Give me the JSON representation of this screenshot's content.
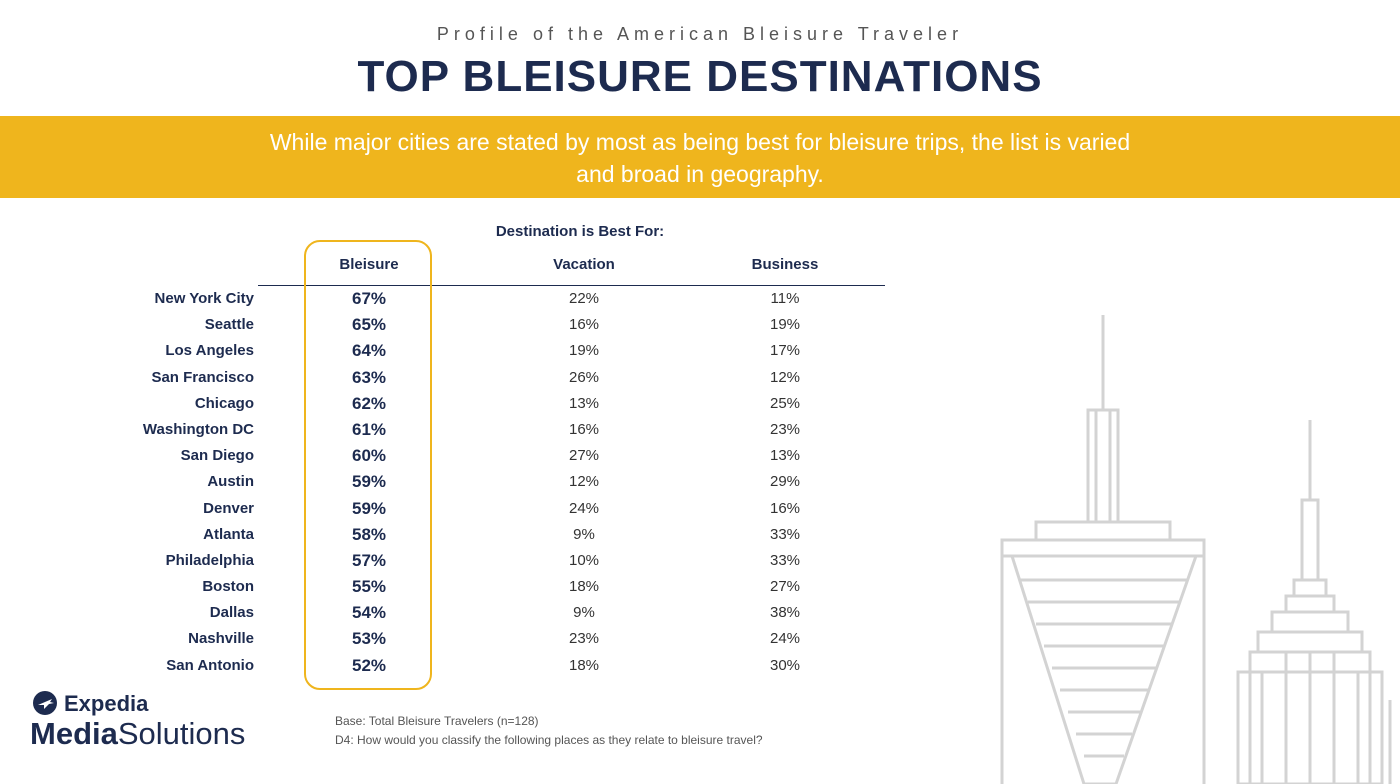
{
  "header": {
    "subtitle": "Profile of the American Bleisure Traveler",
    "title": "TOP BLEISURE DESTINATIONS"
  },
  "banner": {
    "text": "While major cities are stated by most as being best for bleisure trips, the list is varied and broad in geography."
  },
  "table": {
    "group_label": "Destination is Best For:",
    "columns": [
      "Bleisure",
      "Vacation",
      "Business"
    ],
    "rows": [
      {
        "city": "New York City",
        "bleisure": "67%",
        "vacation": "22%",
        "business": "11%"
      },
      {
        "city": "Seattle",
        "bleisure": "65%",
        "vacation": "16%",
        "business": "19%"
      },
      {
        "city": "Los Angeles",
        "bleisure": "64%",
        "vacation": "19%",
        "business": "17%"
      },
      {
        "city": "San Francisco",
        "bleisure": "63%",
        "vacation": "26%",
        "business": "12%"
      },
      {
        "city": "Chicago",
        "bleisure": "62%",
        "vacation": "13%",
        "business": "25%"
      },
      {
        "city": "Washington DC",
        "bleisure": "61%",
        "vacation": "16%",
        "business": "23%"
      },
      {
        "city": "San Diego",
        "bleisure": "60%",
        "vacation": "27%",
        "business": "13%"
      },
      {
        "city": "Austin",
        "bleisure": "59%",
        "vacation": "12%",
        "business": "29%"
      },
      {
        "city": "Denver",
        "bleisure": "59%",
        "vacation": "24%",
        "business": "16%"
      },
      {
        "city": "Atlanta",
        "bleisure": "58%",
        "vacation": "9%",
        "business": "33%"
      },
      {
        "city": "Philadelphia",
        "bleisure": "57%",
        "vacation": "10%",
        "business": "33%"
      },
      {
        "city": "Boston",
        "bleisure": "55%",
        "vacation": "18%",
        "business": "27%"
      },
      {
        "city": "Dallas",
        "bleisure": "54%",
        "vacation": "9%",
        "business": "38%"
      },
      {
        "city": "Nashville",
        "bleisure": "53%",
        "vacation": "23%",
        "business": "24%"
      },
      {
        "city": "San Antonio",
        "bleisure": "52%",
        "vacation": "18%",
        "business": "30%"
      }
    ]
  },
  "notes": {
    "base": "Base: Total Bleisure Travelers (n=128)",
    "question": "D4: How would you classify the following places as they relate to bleisure travel?"
  },
  "logo": {
    "brand": "Expedia",
    "sub_bold": "Media",
    "sub_regular": "Solutions"
  },
  "colors": {
    "navy": "#1d2b4f",
    "gold": "#efb51d"
  }
}
